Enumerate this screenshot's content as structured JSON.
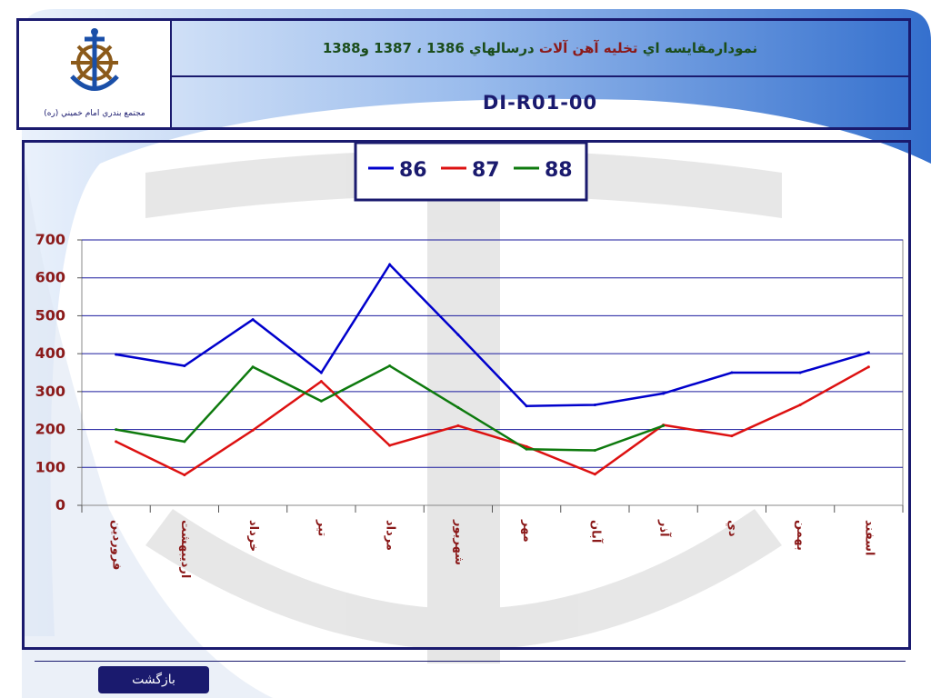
{
  "header": {
    "organization": "مجتمع بندري امام خميني (ره)",
    "title_prefix": "نمودارمقايسه اي",
    "title_highlight": "تخليه آهن آلات",
    "title_suffix": "درسالهاي 1386 ، 1387 و1388",
    "doc_code": "DI-R01-00"
  },
  "footer": {
    "back_label": "بازگشت"
  },
  "colors": {
    "navy": "#1a1a6e",
    "series_86": "#0000cc",
    "series_87": "#dd1111",
    "series_88": "#0e7a0e",
    "category_text": "#8b1a1a"
  },
  "icons": {
    "logo": "anchor-helm-icon"
  },
  "chart_data": {
    "type": "line",
    "categories": [
      "فروردين",
      "ارديبهشت",
      "خرداد",
      "تير",
      "مرداد",
      "شهريور",
      "مهر",
      "آبان",
      "آذر",
      "دي",
      "بهمن",
      "اسفند"
    ],
    "series": [
      {
        "name": "86",
        "color": "#0000cc",
        "values": [
          398,
          368,
          490,
          350,
          635,
          450,
          262,
          265,
          295,
          350,
          350,
          403
        ]
      },
      {
        "name": "87",
        "color": "#dd1111",
        "values": [
          168,
          80,
          198,
          327,
          158,
          210,
          155,
          82,
          212,
          183,
          265,
          365
        ]
      },
      {
        "name": "88",
        "color": "#0e7a0e",
        "values": [
          200,
          168,
          365,
          275,
          368,
          258,
          148,
          145,
          210,
          null,
          null,
          null
        ]
      }
    ],
    "ylim": [
      0,
      700
    ],
    "yticks": [
      "0",
      "100",
      "200",
      "300",
      "400",
      "500",
      "600",
      "700"
    ],
    "grid": true,
    "legend_position": "top-center",
    "title": "",
    "xlabel": "",
    "ylabel": ""
  }
}
